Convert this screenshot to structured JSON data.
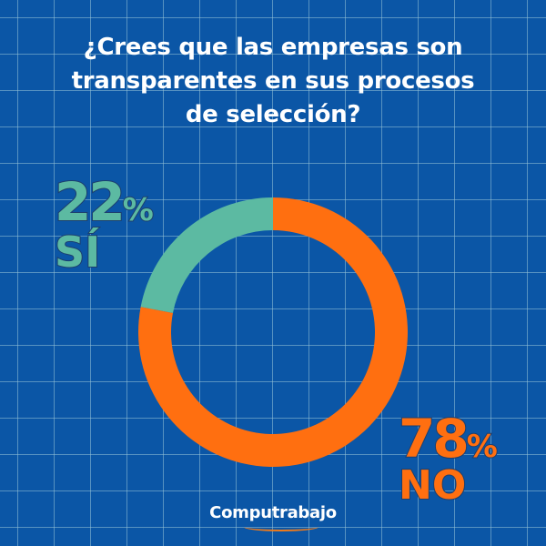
{
  "chart_data": {
    "type": "pie",
    "variant": "donut",
    "title": "¿Crees que las empresas son transparentes en sus procesos de selección?",
    "title_lines": [
      "¿Crees que las empresas son",
      "transparentes en sus procesos",
      "de selección?"
    ],
    "slices": [
      {
        "label": "SÍ",
        "value": 22,
        "percent_text": "22",
        "color": "#5cbaa2"
      },
      {
        "label": "NO",
        "value": 78,
        "percent_text": "78",
        "color": "#ff6f10"
      }
    ],
    "percent_symbol": "%"
  },
  "brand": "Computrabajo"
}
